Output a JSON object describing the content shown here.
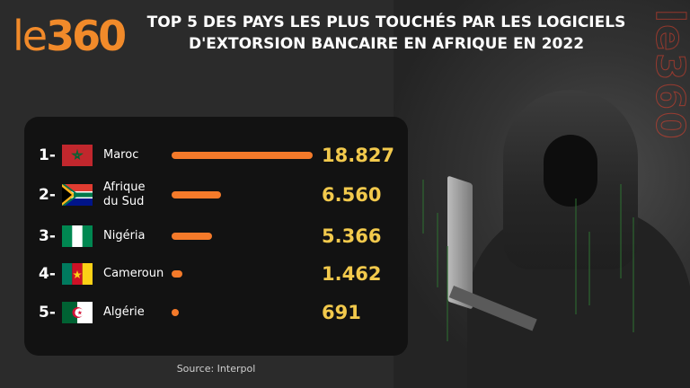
{
  "brand": {
    "logo_prefix": "le",
    "logo_number": "360",
    "side_watermark": "le360"
  },
  "title_line1": "TOP 5 DES PAYS LES PLUS TOUCHÉS PAR LES LOGICIELS",
  "title_line2": "D'EXTORSION BANCAIRE EN AFRIQUE EN 2022",
  "source": "Source: Interpol",
  "colors": {
    "bar": "#f47a2a",
    "value": "#f2c94c",
    "logo": "#f18a2a",
    "panel": "#121212"
  },
  "chart_data": {
    "type": "bar",
    "orientation": "horizontal",
    "title": "TOP 5 DES PAYS LES PLUS TOUCHÉS PAR LES LOGICIELS D'EXTORSION BANCAIRE EN AFRIQUE EN 2022",
    "ranks": [
      "1-",
      "2-",
      "3-",
      "4-",
      "5-"
    ],
    "categories": [
      "Maroc",
      "Afrique du Sud",
      "Nigéria",
      "Cameroun",
      "Algérie"
    ],
    "category_lines": [
      [
        "Maroc"
      ],
      [
        "Afrique",
        "du Sud"
      ],
      [
        "Nigéria"
      ],
      [
        "Cameroun"
      ],
      [
        "Algérie"
      ]
    ],
    "values": [
      18827,
      6560,
      5366,
      1462,
      691
    ],
    "value_labels": [
      "18.827",
      "6.560",
      "5.366",
      "1.462",
      "691"
    ],
    "flags": [
      "morocco-flag-icon",
      "south-africa-flag-icon",
      "nigeria-flag-icon",
      "cameroon-flag-icon",
      "algeria-flag-icon"
    ],
    "xlim": [
      0,
      18827
    ]
  }
}
